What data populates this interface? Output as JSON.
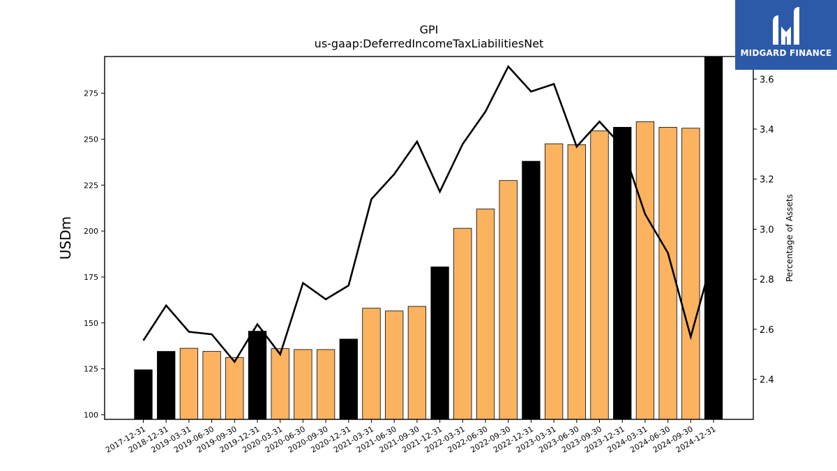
{
  "chart_data": {
    "type": "bar",
    "title": "GPI",
    "subtitle": "us-gaap:DeferredIncomeTaxLiabilitiesNet",
    "ylabel": "USDm",
    "y2label": "Percentage of Assets",
    "ylim": [
      97.5,
      295
    ],
    "y2lim": [
      2.24,
      3.69
    ],
    "yticks": [
      100,
      125,
      150,
      175,
      200,
      225,
      250,
      275
    ],
    "y2ticks": [
      2.4,
      2.6,
      2.8,
      3.0,
      3.2,
      3.4,
      3.6
    ],
    "grid": false,
    "categories": [
      "2017-12-31",
      "2018-12-31",
      "2019-03-31",
      "2019-06-30",
      "2019-09-30",
      "2019-12-31",
      "2020-03-31",
      "2020-06-30",
      "2020-09-30",
      "2020-12-31",
      "2021-03-31",
      "2021-06-30",
      "2021-09-30",
      "2021-12-31",
      "2022-03-31",
      "2022-06-30",
      "2022-09-30",
      "2022-12-31",
      "2023-03-31",
      "2023-06-30",
      "2023-09-30",
      "2023-12-31",
      "2024-03-31",
      "2024-06-30",
      "2024-09-30",
      "2024-12-31"
    ],
    "series": [
      {
        "kind": "bar",
        "axis": "left",
        "values": [
          124.5,
          134.5,
          136.2,
          134.5,
          131.2,
          145.5,
          136.0,
          135.5,
          135.5,
          141.2,
          158.0,
          156.5,
          159.0,
          180.5,
          201.5,
          212.0,
          227.5,
          238.0,
          247.5,
          247.0,
          254.5,
          256.5,
          259.5,
          256.5,
          256.0,
          296.0
        ],
        "year_end": [
          true,
          true,
          false,
          false,
          false,
          true,
          false,
          false,
          false,
          true,
          false,
          false,
          false,
          true,
          false,
          false,
          false,
          true,
          false,
          false,
          false,
          true,
          false,
          false,
          false,
          true
        ]
      },
      {
        "kind": "line",
        "axis": "right",
        "values": [
          2.555,
          2.695,
          2.59,
          2.58,
          2.47,
          2.62,
          2.5,
          2.785,
          2.72,
          2.775,
          3.12,
          3.22,
          3.35,
          3.15,
          3.34,
          3.47,
          3.65,
          3.55,
          3.58,
          3.33,
          3.43,
          3.33,
          3.06,
          2.905,
          2.57,
          2.9
        ]
      }
    ],
    "colors": {
      "year_end_bar": "#000000",
      "quarter_bar": "#fbb360",
      "bar_edge": "#000000",
      "line": "#000000"
    }
  },
  "logo": {
    "brand_text": "MIDGARD FINANCE",
    "icon": "midgard-m-logo-icon",
    "background": "#2d5aa8"
  }
}
